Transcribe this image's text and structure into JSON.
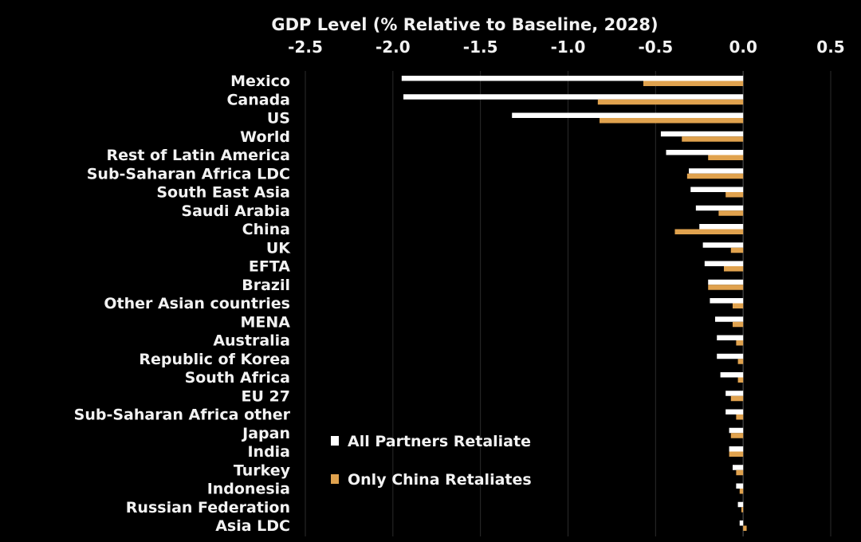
{
  "chart_data": {
    "type": "bar",
    "orientation": "horizontal",
    "title": "GDP Level (% Relative to Baseline, 2028)",
    "xlim": [
      -2.5,
      0.5
    ],
    "x_ticks": [
      -2.5,
      -2.0,
      -1.5,
      -1.0,
      -0.5,
      0.0,
      0.5
    ],
    "x_tick_labels": [
      "-2.5",
      "-2.0",
      "-1.5",
      "-1.0",
      "-0.5",
      "0.0",
      "0.5"
    ],
    "grid": true,
    "legend_position": "bottom-center",
    "categories": [
      "Mexico",
      "Canada",
      "US",
      "World",
      "Rest of Latin America",
      "Sub-Saharan Africa LDC",
      "South East Asia",
      "Saudi Arabia",
      "China",
      "UK",
      "EFTA",
      "Brazil",
      "Other Asian countries",
      "MENA",
      "Australia",
      "Republic of Korea",
      "South Africa",
      "EU 27",
      "Sub-Saharan Africa other",
      "Japan",
      "India",
      "Turkey",
      "Indonesia",
      "Russian Federation",
      "Asia LDC"
    ],
    "series": [
      {
        "name": "All Partners Retaliate",
        "color": "#ffffff",
        "values": [
          -1.95,
          -1.94,
          -1.32,
          -0.47,
          -0.44,
          -0.31,
          -0.3,
          -0.27,
          -0.25,
          -0.23,
          -0.22,
          -0.2,
          -0.19,
          -0.16,
          -0.15,
          -0.15,
          -0.13,
          -0.1,
          -0.1,
          -0.08,
          -0.08,
          -0.06,
          -0.04,
          -0.03,
          -0.02
        ]
      },
      {
        "name": "Only China Retaliates",
        "color": "#e0a24e",
        "values": [
          -0.57,
          -0.83,
          -0.82,
          -0.35,
          -0.2,
          -0.32,
          -0.1,
          -0.14,
          -0.39,
          -0.07,
          -0.11,
          -0.2,
          -0.06,
          -0.06,
          -0.04,
          -0.03,
          -0.03,
          -0.07,
          -0.04,
          -0.07,
          -0.08,
          -0.04,
          -0.02,
          -0.01,
          0.02
        ]
      }
    ]
  }
}
